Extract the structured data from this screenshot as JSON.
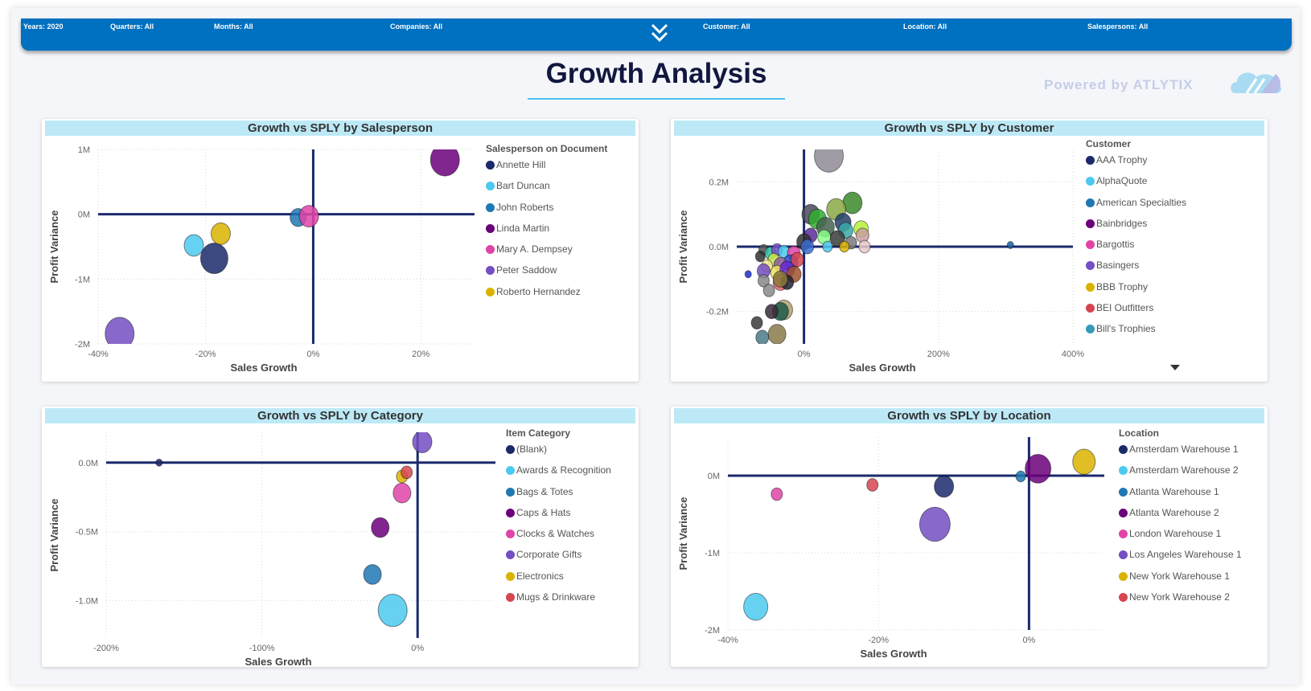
{
  "filters": [
    {
      "label": "Years: 2020"
    },
    {
      "label": "Quarters: All"
    },
    {
      "label": "Months: All"
    },
    {
      "label": "Companies: All"
    },
    {
      "label": "Customer: All"
    },
    {
      "label": "Location: All"
    },
    {
      "label": "Salespersons: All"
    }
  ],
  "expand_icon": "double-chevron-down-icon",
  "page_title": "Growth Analysis",
  "powered_by": "Powered by ATLYTIX",
  "colors": {
    "filter_bar": "#0070c0",
    "card_header": "#bde9f7",
    "quadrant_axis": "#1b2a6b",
    "title": "#12173f"
  },
  "chart_data": [
    {
      "type": "scatter",
      "title": "Growth vs SPLY by Salesperson",
      "xlabel": "Sales Growth",
      "ylabel": "Profit Variance",
      "xlim": [
        -40,
        30
      ],
      "ylim": [
        -2,
        1
      ],
      "xticks": [
        {
          "v": -40,
          "label": "-40%"
        },
        {
          "v": -20,
          "label": "-20%"
        },
        {
          "v": 0,
          "label": "0%"
        },
        {
          "v": 20,
          "label": "20%"
        }
      ],
      "yticks": [
        {
          "v": 1,
          "label": "1M"
        },
        {
          "v": 0,
          "label": "0M"
        },
        {
          "v": -1,
          "label": "-1M"
        },
        {
          "v": -2,
          "label": "-2M"
        }
      ],
      "grid": true,
      "legend": {
        "title": "Salesperson on Document",
        "placement": "right"
      },
      "series": [
        {
          "name": "Annette Hill",
          "color": "#1b2a6b",
          "x": -18.4,
          "y": -0.68,
          "size": 17
        },
        {
          "name": "Bart Duncan",
          "color": "#4cc9f0",
          "x": -22.2,
          "y": -0.48,
          "size": 12
        },
        {
          "name": "John Roberts",
          "color": "#1f77b4",
          "x": -2.8,
          "y": -0.05,
          "size": 10
        },
        {
          "name": "Linda Martin",
          "color": "#6b007b",
          "x": 24.5,
          "y": 0.84,
          "size": 18
        },
        {
          "name": "Mary A. Dempsey",
          "color": "#e044a7",
          "x": -0.8,
          "y": -0.03,
          "size": 12
        },
        {
          "name": "Peter Saddow",
          "color": "#744ec2",
          "x": -36,
          "y": -1.84,
          "size": 18
        },
        {
          "name": "Roberto Hernandez",
          "color": "#d9b300",
          "x": -17.2,
          "y": -0.3,
          "size": 12
        }
      ]
    },
    {
      "type": "scatter",
      "title": "Growth vs SPLY by Customer",
      "xlabel": "Sales Growth",
      "ylabel": "Profit Variance",
      "xlim": [
        -100,
        400
      ],
      "ylim": [
        -0.3,
        0.3
      ],
      "xticks": [
        {
          "v": 0,
          "label": "0%"
        },
        {
          "v": 200,
          "label": "200%"
        },
        {
          "v": 400,
          "label": "400%"
        }
      ],
      "yticks": [
        {
          "v": 0.2,
          "label": "0.2M"
        },
        {
          "v": 0,
          "label": "0.0M"
        },
        {
          "v": -0.2,
          "label": "-0.2M"
        }
      ],
      "grid": true,
      "legend": {
        "title": "Customer",
        "placement": "right",
        "scrollable": true
      },
      "series": [
        {
          "name": "AAA Trophy",
          "color": "#1b2a6b"
        },
        {
          "name": "AlphaQuote",
          "color": "#4cc9f0"
        },
        {
          "name": "American Specialties",
          "color": "#1f77b4"
        },
        {
          "name": "Bainbridges",
          "color": "#6b007b"
        },
        {
          "name": "Bargottis",
          "color": "#e044a7"
        },
        {
          "name": "Basingers",
          "color": "#744ec2"
        },
        {
          "name": "BBB Trophy",
          "color": "#d9b300"
        },
        {
          "name": "BEI Outfitters",
          "color": "#d64550"
        },
        {
          "name": "Bill's Trophies",
          "color": "#3599b8"
        }
      ],
      "points": [
        [
          37,
          0.28,
          18,
          "#8f8a95"
        ],
        [
          72,
          0.135,
          12,
          "#3a8a2a"
        ],
        [
          48,
          0.115,
          12,
          "#8aa845"
        ],
        [
          10,
          0.1,
          11,
          "#4a4a5a"
        ],
        [
          20,
          0.085,
          11,
          "#2fae2f"
        ],
        [
          58,
          0.075,
          10,
          "#24406b"
        ],
        [
          32,
          0.06,
          11,
          "#45624f"
        ],
        [
          85,
          0.055,
          9,
          "#b5f03a"
        ],
        [
          62,
          0.05,
          9,
          "#3aa8a8"
        ],
        [
          10,
          0.035,
          8,
          "#5b2a9a"
        ],
        [
          30,
          0.03,
          8,
          "#8aff8a"
        ],
        [
          50,
          0.025,
          9,
          "#3b3b3b"
        ],
        [
          87,
          0.035,
          8,
          "#c8a0a0"
        ],
        [
          70,
          0.012,
          7,
          "#7a7a7a"
        ],
        [
          90,
          0.0,
          7,
          "#e8c8c8"
        ],
        [
          0,
          0.015,
          9,
          "#333333"
        ],
        [
          5,
          0.0,
          8,
          "#3a6ad0"
        ],
        [
          35,
          0.0,
          6,
          "#4cc9f0"
        ],
        [
          60,
          0.0,
          6,
          "#d9b300"
        ],
        [
          307,
          0.005,
          4,
          "#1f5f9e"
        ],
        [
          -60,
          -0.01,
          6,
          "#555555"
        ],
        [
          -50,
          -0.02,
          7,
          "#2fbf9f"
        ],
        [
          -40,
          -0.01,
          7,
          "#744ec2"
        ],
        [
          -30,
          -0.015,
          7,
          "#4cc9f0"
        ],
        [
          -15,
          -0.02,
          8,
          "#e044a7"
        ],
        [
          -65,
          -0.03,
          6,
          "#333333"
        ],
        [
          -45,
          -0.04,
          7,
          "#c8e84a"
        ],
        [
          -20,
          -0.05,
          9,
          "#2a4ad0"
        ],
        [
          -55,
          -0.06,
          7,
          "#f0e68c"
        ],
        [
          -35,
          -0.055,
          8,
          "#8a5a9a"
        ],
        [
          -10,
          -0.04,
          8,
          "#d64550"
        ],
        [
          -60,
          -0.075,
          8,
          "#744ec2"
        ],
        [
          -40,
          -0.08,
          8,
          "#f0e060"
        ],
        [
          -25,
          -0.07,
          9,
          "#6a2ad0"
        ],
        [
          -15,
          -0.085,
          9,
          "#a0522d"
        ],
        [
          -83,
          -0.085,
          4,
          "#1d2ad0"
        ],
        [
          -60,
          -0.105,
          7,
          "#888888"
        ],
        [
          -35,
          -0.11,
          9,
          "#e06070"
        ],
        [
          -25,
          -0.11,
          8,
          "#222233"
        ],
        [
          -35,
          -0.1,
          9,
          "#8a7a3a"
        ],
        [
          -52,
          -0.135,
          7,
          "#8a8a8a"
        ],
        [
          -30,
          -0.195,
          11,
          "#b0a070"
        ],
        [
          -35,
          -0.2,
          10,
          "#1f5a4a"
        ],
        [
          -48,
          -0.2,
          8,
          "#3a2a3a"
        ],
        [
          -70,
          -0.235,
          7,
          "#3a3a3a"
        ],
        [
          -40,
          -0.27,
          11,
          "#8a7a4a"
        ],
        [
          -62,
          -0.28,
          8,
          "#4a7a8a"
        ]
      ]
    },
    {
      "type": "scatter",
      "title": "Growth vs SPLY by Category",
      "xlabel": "Sales Growth",
      "ylabel": "Profit Variance",
      "xlim": [
        -200,
        50
      ],
      "ylim": [
        -1.27,
        0.22
      ],
      "xticks": [
        {
          "v": -200,
          "label": "-200%"
        },
        {
          "v": -100,
          "label": "-100%"
        },
        {
          "v": 0,
          "label": "0%"
        }
      ],
      "yticks": [
        {
          "v": 0,
          "label": "0.0M"
        },
        {
          "v": -0.5,
          "label": "-0.5M"
        },
        {
          "v": -1,
          "label": "-1.0M"
        }
      ],
      "grid": true,
      "legend": {
        "title": "Item Category",
        "placement": "right"
      },
      "series": [
        {
          "name": "(Blank)",
          "color": "#1b2a6b",
          "x": -166,
          "y": 0,
          "size": 4
        },
        {
          "name": "Awards & Recognition",
          "color": "#4cc9f0",
          "x": -16,
          "y": -1.07,
          "size": 18
        },
        {
          "name": "Bags & Totes",
          "color": "#1f77b4",
          "x": -29,
          "y": -0.81,
          "size": 11
        },
        {
          "name": "Caps & Hats",
          "color": "#6b007b",
          "x": -24,
          "y": -0.47,
          "size": 11
        },
        {
          "name": "Clocks & Watches",
          "color": "#e044a7",
          "x": -10,
          "y": -0.22,
          "size": 11
        },
        {
          "name": "Corporate Gifts",
          "color": "#744ec2",
          "x": 3,
          "y": 0.15,
          "size": 12
        },
        {
          "name": "Electronics",
          "color": "#d9b300",
          "x": -10,
          "y": -0.1,
          "size": 7
        },
        {
          "name": "Mugs & Drinkware",
          "color": "#d64550",
          "x": -7,
          "y": -0.07,
          "size": 7
        }
      ]
    },
    {
      "type": "scatter",
      "title": "Growth vs SPLY by Location",
      "xlabel": "Sales Growth",
      "ylabel": "Profit Variance",
      "xlim": [
        -40,
        10
      ],
      "ylim": [
        -2,
        0.5
      ],
      "xticks": [
        {
          "v": -40,
          "label": "-40%"
        },
        {
          "v": -20,
          "label": "-20%"
        },
        {
          "v": 0,
          "label": "0%"
        }
      ],
      "yticks": [
        {
          "v": 0,
          "label": "0M"
        },
        {
          "v": -1,
          "label": "-1M"
        },
        {
          "v": -2,
          "label": "-2M"
        }
      ],
      "grid": true,
      "legend": {
        "title": "Location",
        "placement": "right"
      },
      "series": [
        {
          "name": "Amsterdam Warehouse 1",
          "color": "#1b2a6b",
          "x": -11.3,
          "y": -0.14,
          "size": 12
        },
        {
          "name": "Amsterdam Warehouse 2",
          "color": "#4cc9f0",
          "x": -36.3,
          "y": -1.7,
          "size": 15
        },
        {
          "name": "Atlanta Warehouse 1",
          "color": "#1f77b4",
          "x": -1.1,
          "y": -0.01,
          "size": 6
        },
        {
          "name": "Atlanta Warehouse 2",
          "color": "#6b007b",
          "x": 1.2,
          "y": 0.09,
          "size": 16
        },
        {
          "name": "London Warehouse 1",
          "color": "#e044a7",
          "x": -33.5,
          "y": -0.24,
          "size": 7
        },
        {
          "name": "Los Angeles Warehouse 1",
          "color": "#744ec2",
          "x": -12.5,
          "y": -0.63,
          "size": 19
        },
        {
          "name": "New York Warehouse 1",
          "color": "#d9b300",
          "x": 7.3,
          "y": 0.18,
          "size": 14
        },
        {
          "name": "New York Warehouse 2",
          "color": "#d64550",
          "x": -20.8,
          "y": -0.12,
          "size": 7
        }
      ]
    }
  ]
}
